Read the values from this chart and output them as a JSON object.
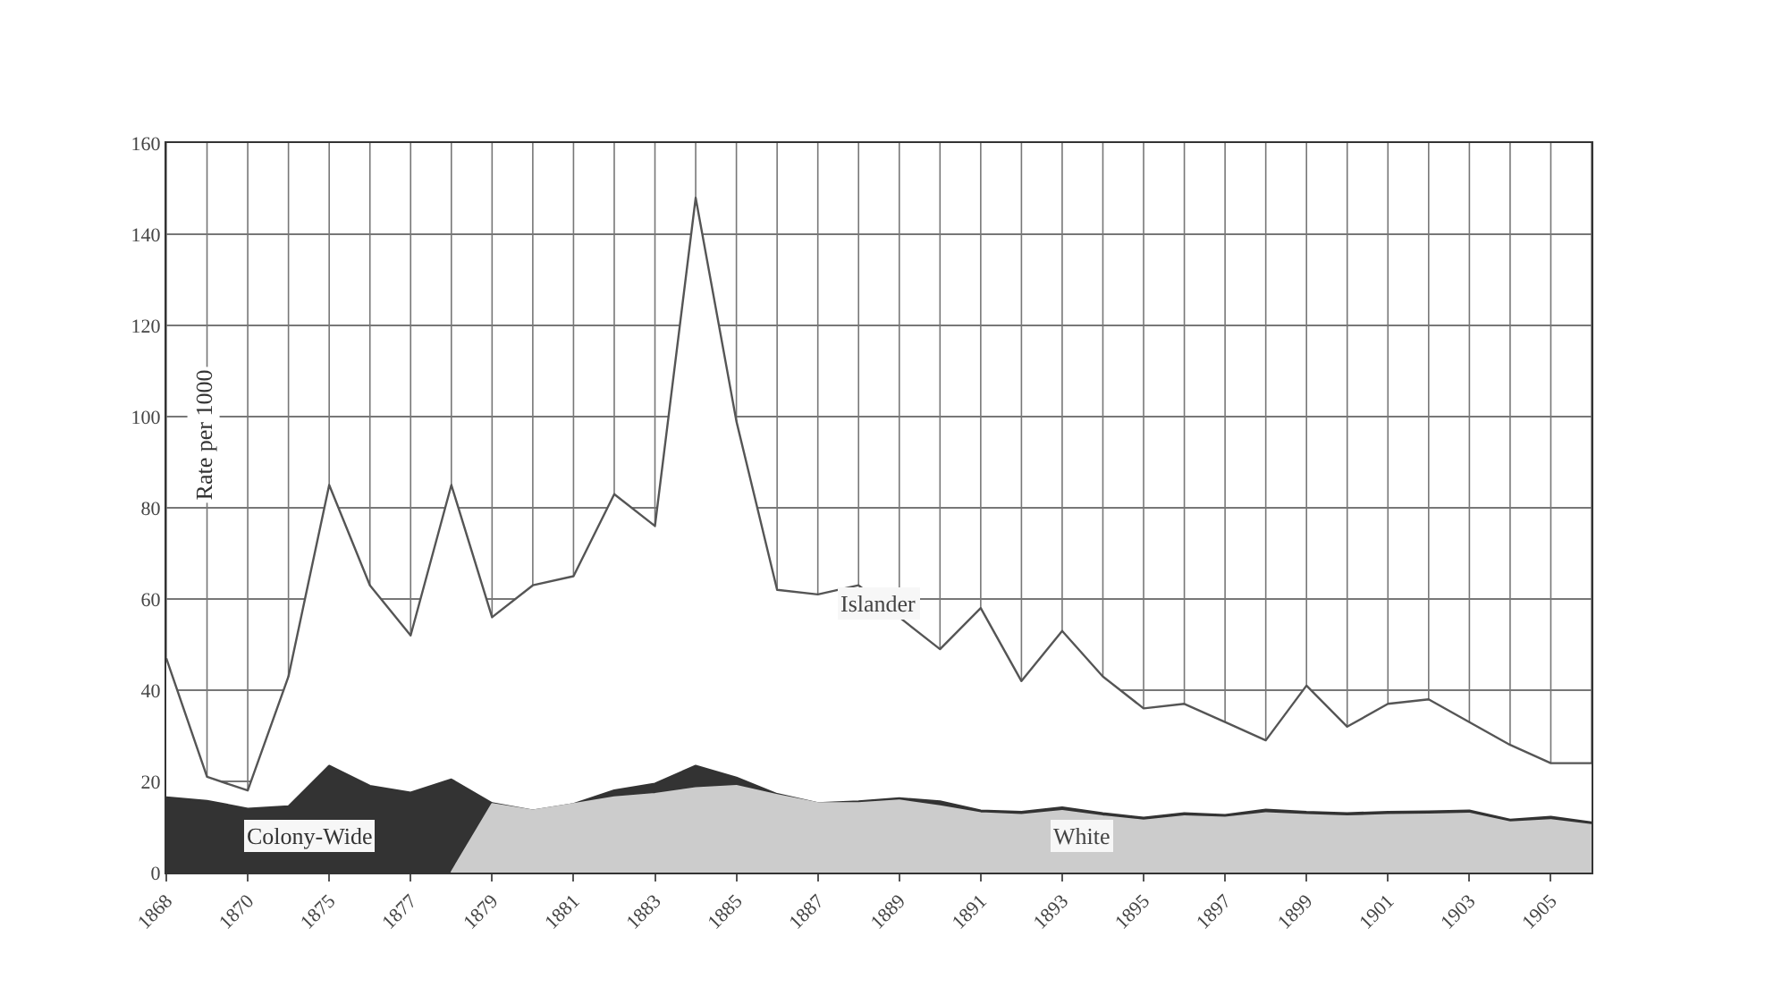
{
  "chart_data": {
    "type": "area",
    "ylabel": "Rate per 1000",
    "categories": [
      "1868",
      null,
      "1870",
      null,
      "1875",
      null,
      "1877",
      null,
      "1879",
      null,
      "1881",
      null,
      "1883",
      null,
      "1885",
      null,
      "1887",
      null,
      "1889",
      null,
      "1891",
      null,
      "1893",
      null,
      "1895",
      null,
      "1897",
      null,
      "1899",
      null,
      "1901",
      null,
      "1903",
      null,
      "1905",
      null
    ],
    "series": [
      {
        "name": "Islander",
        "color": "#ffffff",
        "values": [
          47,
          21,
          18,
          43,
          85,
          63,
          52,
          85,
          56,
          63,
          65,
          83,
          76,
          148,
          99,
          62,
          61,
          63,
          56,
          49,
          58,
          42,
          53,
          43,
          36,
          37,
          33,
          29,
          41,
          32,
          37,
          38,
          33,
          28,
          24,
          24
        ]
      },
      {
        "name": "Colony-Wide",
        "color": "#333333",
        "values": [
          16.5,
          15.7,
          14,
          14.5,
          23.4,
          19,
          17.5,
          20.4,
          15.2,
          13.6,
          15,
          18,
          19.5,
          23.4,
          20.8,
          17.2,
          15.2,
          15.6,
          16.3,
          15.6,
          13.6,
          13.3,
          14.3,
          13,
          12,
          13,
          12.6,
          13.8,
          13.3,
          13,
          13.3,
          13.4,
          13.6,
          11.6,
          12.2,
          11
        ]
      },
      {
        "name": "White",
        "color": "#cccccc",
        "values": [
          null,
          null,
          null,
          null,
          null,
          null,
          null,
          0,
          15,
          13.6,
          15,
          16.5,
          17.2,
          18.5,
          19,
          17,
          15.2,
          15.2,
          15.8,
          14.5,
          13,
          12.6,
          13.5,
          12.3,
          11.4,
          12.3,
          12,
          13,
          12.6,
          12.3,
          12.6,
          12.7,
          12.9,
          11,
          11.5,
          10.4
        ]
      }
    ],
    "ylim": [
      0,
      160
    ],
    "yticks": [
      0,
      20,
      40,
      60,
      80,
      100,
      120,
      140,
      160
    ],
    "grid": true,
    "legend": false
  }
}
